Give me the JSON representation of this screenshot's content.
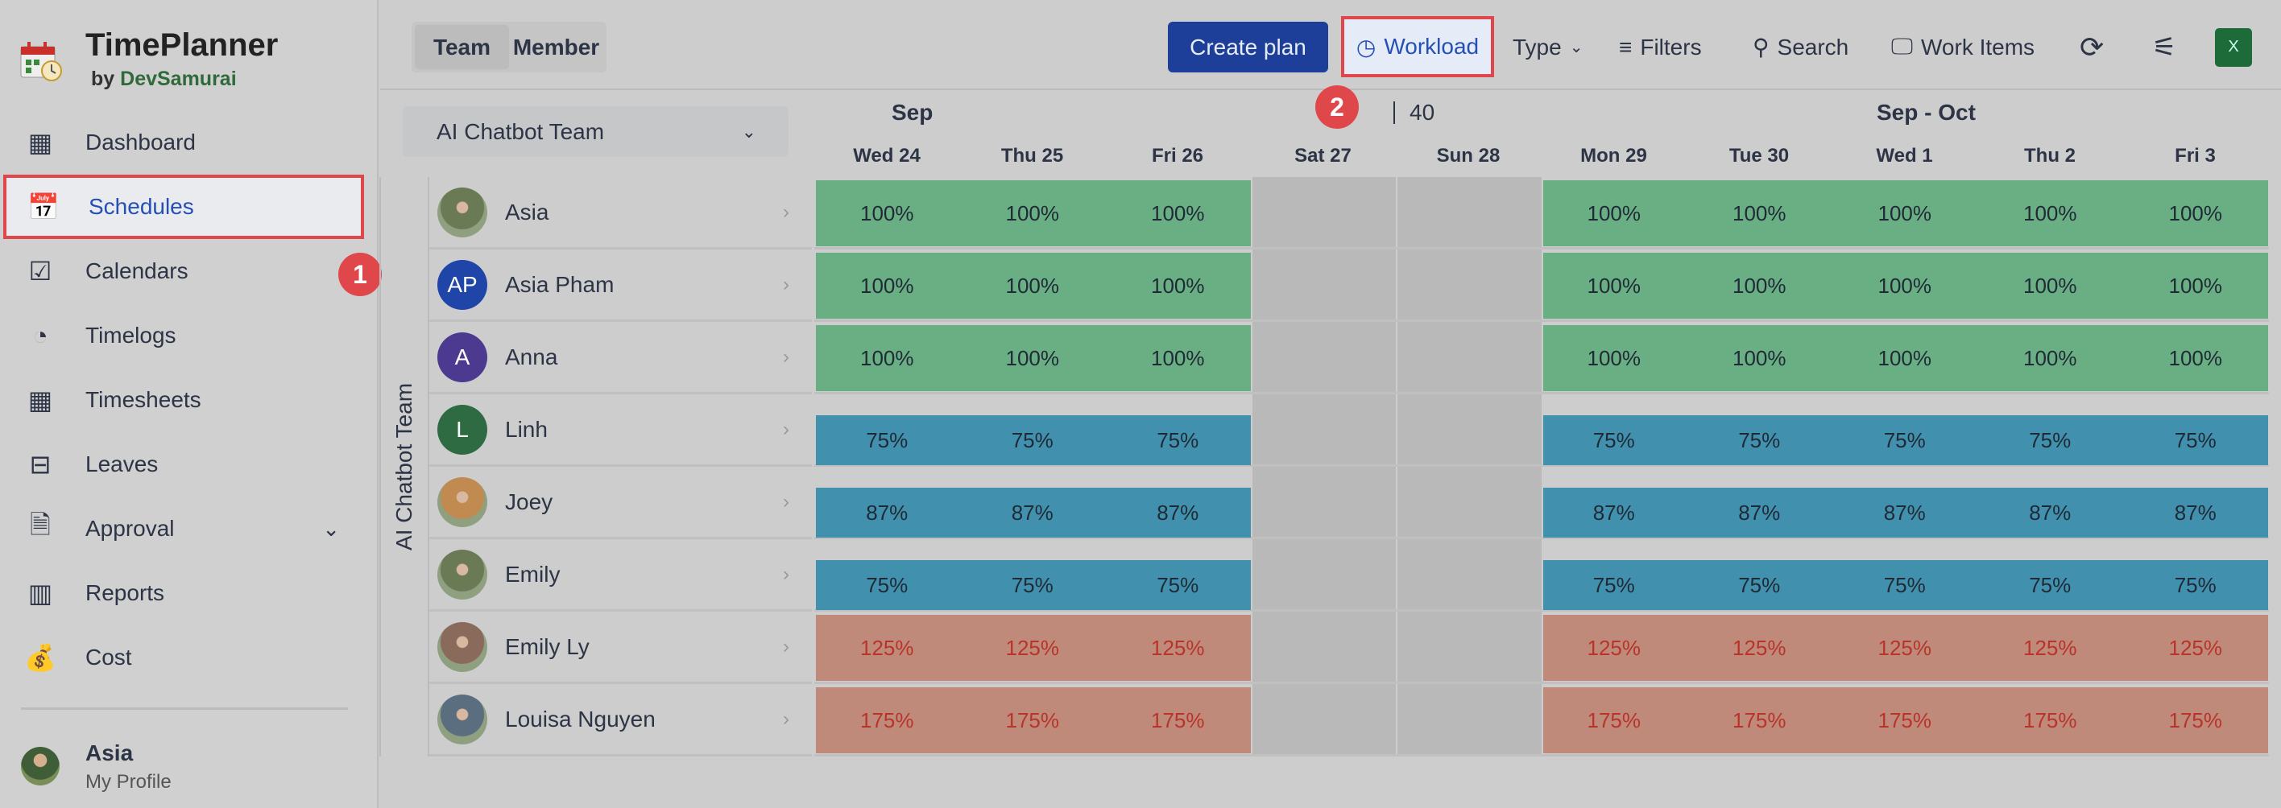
{
  "app": {
    "title": "TimePlanner",
    "by": "by",
    "vendor": "DevSamurai"
  },
  "sidebar": {
    "items": [
      {
        "label": "Dashboard",
        "icon": "grid-icon"
      },
      {
        "label": "Schedules",
        "icon": "calendar-plus-icon",
        "active": true
      },
      {
        "label": "Calendars",
        "icon": "calendar-check-icon"
      },
      {
        "label": "Timelogs",
        "icon": "clock-icon"
      },
      {
        "label": "Timesheets",
        "icon": "table-icon"
      },
      {
        "label": "Leaves",
        "icon": "calendar-minus-icon"
      },
      {
        "label": "Approval",
        "icon": "file-check-icon",
        "chevron": true
      },
      {
        "label": "Reports",
        "icon": "bar-chart-icon"
      },
      {
        "label": "Cost",
        "icon": "money-bag-icon"
      }
    ],
    "profile": {
      "name": "Asia",
      "sub": "My Profile"
    }
  },
  "annotations": [
    "1",
    "2"
  ],
  "toolbar": {
    "toggle": [
      "Team",
      "Member"
    ],
    "create": "Create plan",
    "workload": "Workload",
    "type": "Type",
    "filters": "Filters",
    "search": "Search",
    "work_items": "Work Items",
    "excel": "X"
  },
  "team_select": "AI Chatbot Team",
  "team_label": "AI Chatbot Team",
  "header": {
    "month_left": "Sep",
    "week": "40",
    "month_right": "Sep - Oct",
    "days": [
      "Wed  24",
      "Thu  25",
      "Fri  26",
      "Sat  27",
      "Sun  28",
      "Mon  29",
      "Tue  30",
      "Wed  1",
      "Thu  2",
      "Fri  3"
    ],
    "weekend": [
      3,
      4
    ]
  },
  "colors": {
    "full": "#6aaf84",
    "under": "#4190ad",
    "over": "#c08a7a",
    "over_text": "#b8342a",
    "weekend": "#b9b9b9",
    "accent": "#1d3f99",
    "highlight": "#e0474a"
  },
  "members": [
    {
      "name": "Asia",
      "avatar": "photo",
      "load": "100%",
      "status": "full"
    },
    {
      "name": "Asia Pham",
      "avatar": "AP",
      "avatar_color": "#1f45a8",
      "load": "100%",
      "status": "full"
    },
    {
      "name": "Anna",
      "avatar": "A",
      "avatar_color": "#4b3a8f",
      "load": "100%",
      "status": "full"
    },
    {
      "name": "Linh",
      "avatar": "L",
      "avatar_color": "#2e6b43",
      "load": "75%",
      "status": "under"
    },
    {
      "name": "Joey",
      "avatar": "photo",
      "load": "87%",
      "status": "under"
    },
    {
      "name": "Emily",
      "avatar": "photo",
      "load": "75%",
      "status": "under"
    },
    {
      "name": "Emily Ly",
      "avatar": "photo",
      "load": "125%",
      "status": "over"
    },
    {
      "name": "Louisa Nguyen",
      "avatar": "photo",
      "load": "175%",
      "status": "over"
    }
  ]
}
